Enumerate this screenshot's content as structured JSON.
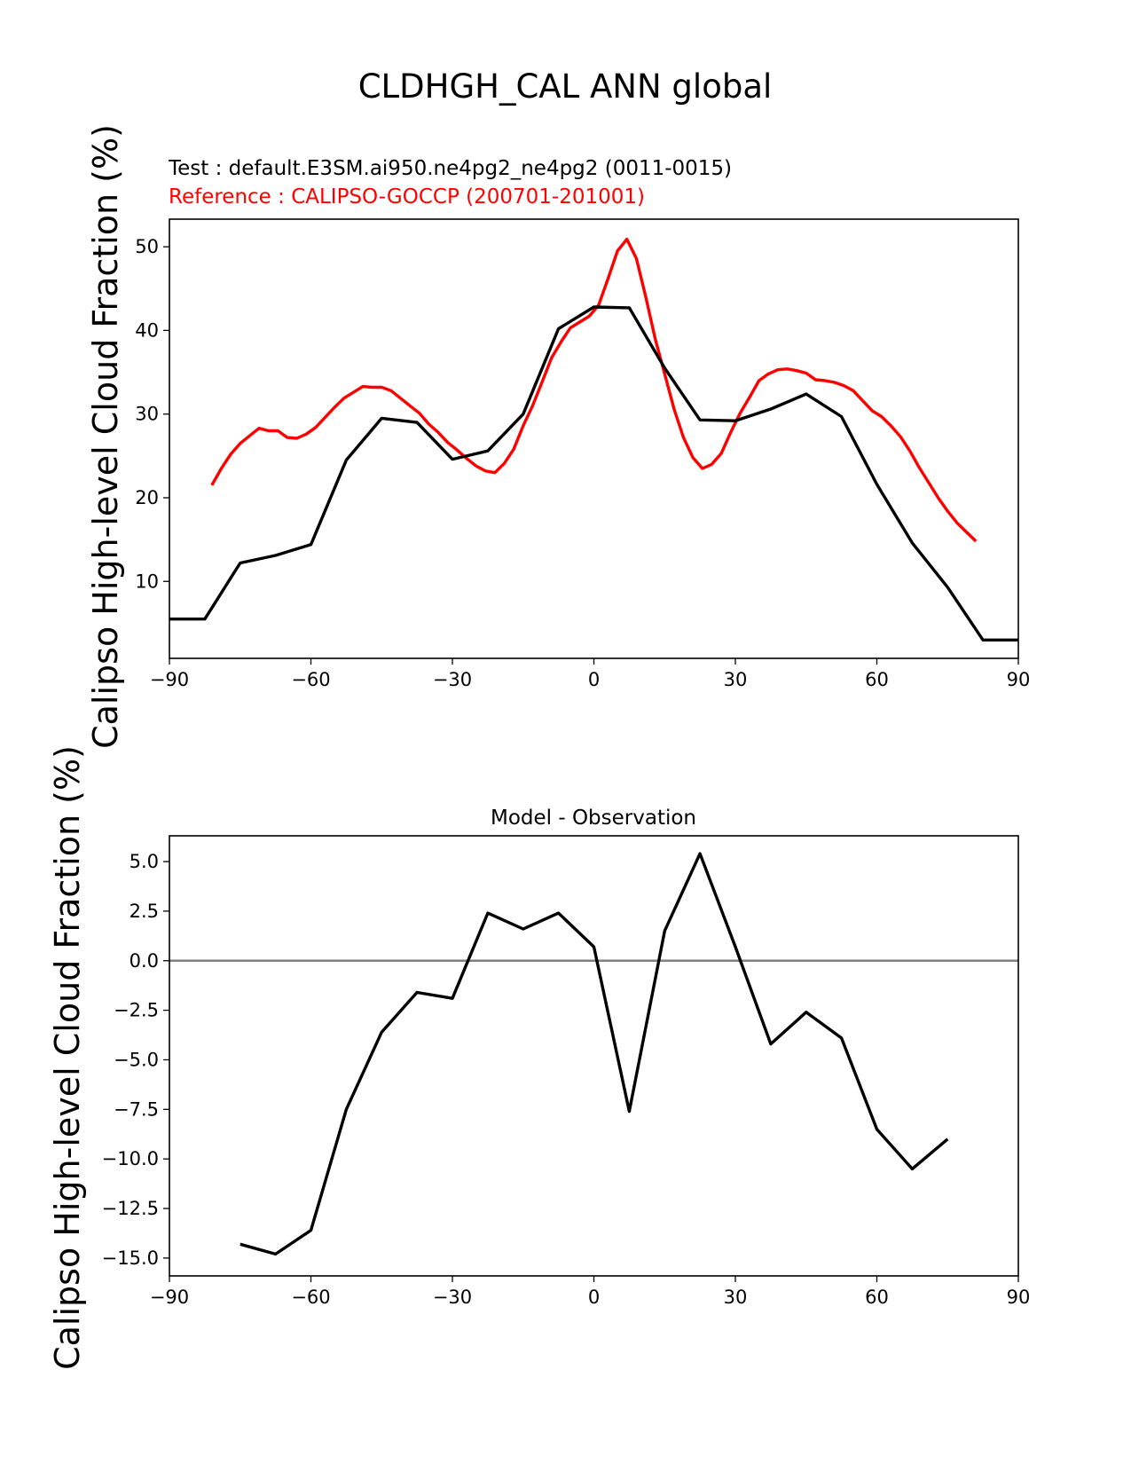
{
  "figure": {
    "suptitle": "CLDHGH_CAL ANN global",
    "test_label": "Test : default.E3SM.ai950.ne4pg2_ne4pg2 (0011-0015)",
    "reference_label": "Reference : CALIPSO-GOCCP (200701-201001)",
    "colors": {
      "test": "#000000",
      "reference": "#ff0000",
      "zero_line": "#808080"
    }
  },
  "chart_data": [
    {
      "type": "line",
      "title": "",
      "xlabel": "",
      "ylabel": "Calipso High-level Cloud Fraction (%)",
      "xlim": [
        -90,
        90
      ],
      "ylim": [
        0.8,
        53.3
      ],
      "xticks": [
        -90,
        -60,
        -30,
        0,
        30,
        60,
        90
      ],
      "xtick_labels": [
        "−90",
        "−60",
        "−30",
        "0",
        "30",
        "60",
        "90"
      ],
      "yticks": [
        10,
        20,
        30,
        40,
        50
      ],
      "ytick_labels": [
        "10",
        "20",
        "30",
        "40",
        "50"
      ],
      "series": [
        {
          "name": "Test",
          "color": "#000000",
          "x": [
            -90,
            -82.5,
            -75,
            -67.5,
            -60,
            -52.5,
            -45,
            -37.5,
            -30,
            -22.5,
            -15,
            -7.5,
            0,
            7.5,
            15,
            22.5,
            30,
            37.5,
            45,
            52.5,
            60,
            67.5,
            75,
            82.5,
            90
          ],
          "y": [
            5.5,
            5.5,
            12.2,
            13.1,
            14.4,
            24.5,
            29.5,
            29.0,
            24.6,
            25.6,
            30.0,
            40.2,
            42.8,
            42.7,
            35.5,
            29.3,
            29.2,
            30.6,
            32.4,
            29.7,
            21.6,
            14.6,
            9.3,
            3.0,
            3.0
          ]
        },
        {
          "name": "Reference",
          "color": "#ff0000",
          "x": [
            -81,
            -79,
            -77,
            -75,
            -73,
            -71,
            -69,
            -67,
            -65,
            -63,
            -61,
            -59,
            -57,
            -55,
            -53,
            -51,
            -49,
            -47,
            -45,
            -43,
            -41,
            -39,
            -37,
            -35,
            -33,
            -31,
            -29,
            -27,
            -25,
            -23,
            -21,
            -19,
            -17,
            -15,
            -13,
            -11,
            -9,
            -7,
            -5,
            -3,
            -1,
            1,
            3,
            5,
            7,
            9,
            11,
            13,
            15,
            17,
            19,
            21,
            23,
            25,
            27,
            29,
            31,
            33,
            35,
            37,
            39,
            41,
            43,
            45,
            47,
            49,
            51,
            53,
            55,
            57,
            59,
            61,
            63,
            65,
            67,
            69,
            71,
            73,
            75,
            77,
            79,
            81
          ],
          "y": [
            21.5,
            23.5,
            25.2,
            26.5,
            27.4,
            28.3,
            28.0,
            28.0,
            27.2,
            27.1,
            27.6,
            28.4,
            29.6,
            30.8,
            31.9,
            32.6,
            33.3,
            33.2,
            33.2,
            32.8,
            31.9,
            31.0,
            30.1,
            28.8,
            27.8,
            26.6,
            25.7,
            24.7,
            23.8,
            23.2,
            23.0,
            24.1,
            25.8,
            28.6,
            31.0,
            33.8,
            36.7,
            38.6,
            40.3,
            41.0,
            41.7,
            43.0,
            46.2,
            49.5,
            50.9,
            48.6,
            44.0,
            39.0,
            34.8,
            30.6,
            27.2,
            24.8,
            23.5,
            24.0,
            25.3,
            27.8,
            30.1,
            32.0,
            34.0,
            34.8,
            35.3,
            35.4,
            35.2,
            34.9,
            34.1,
            34.0,
            33.8,
            33.4,
            32.8,
            31.6,
            30.4,
            29.7,
            28.6,
            27.3,
            25.6,
            23.6,
            21.8,
            20.0,
            18.4,
            17.0,
            15.9,
            14.8
          ]
        }
      ]
    },
    {
      "type": "line",
      "title": "Model - Observation",
      "xlabel": "",
      "ylabel": "Calipso High-level Cloud Fraction (%)",
      "xlim": [
        -90,
        90
      ],
      "ylim": [
        -15.9,
        6.3
      ],
      "xticks": [
        -90,
        -60,
        -30,
        0,
        30,
        60,
        90
      ],
      "xtick_labels": [
        "−90",
        "−60",
        "−30",
        "0",
        "30",
        "60",
        "90"
      ],
      "yticks": [
        5.0,
        2.5,
        0.0,
        -2.5,
        -5.0,
        -7.5,
        -10.0,
        -12.5,
        -15.0
      ],
      "ytick_labels": [
        "5.0",
        "2.5",
        "0.0",
        "−2.5",
        "−5.0",
        "−7.5",
        "−10.0",
        "−12.5",
        "−15.0"
      ],
      "zero_line": 0,
      "series": [
        {
          "name": "Model - Observation",
          "color": "#000000",
          "x": [
            -75,
            -67.5,
            -60,
            -52.5,
            -45,
            -37.5,
            -30,
            -22.5,
            -15,
            -7.5,
            0,
            7.5,
            15,
            22.5,
            30,
            37.5,
            45,
            52.5,
            60,
            67.5,
            75
          ],
          "y": [
            -14.3,
            -14.8,
            -13.6,
            -7.5,
            -3.6,
            -1.6,
            -1.9,
            2.4,
            1.6,
            2.4,
            0.7,
            -7.6,
            1.5,
            5.4,
            0.7,
            -4.2,
            -2.6,
            -3.9,
            -8.5,
            -10.5,
            -9.0
          ]
        }
      ]
    }
  ]
}
